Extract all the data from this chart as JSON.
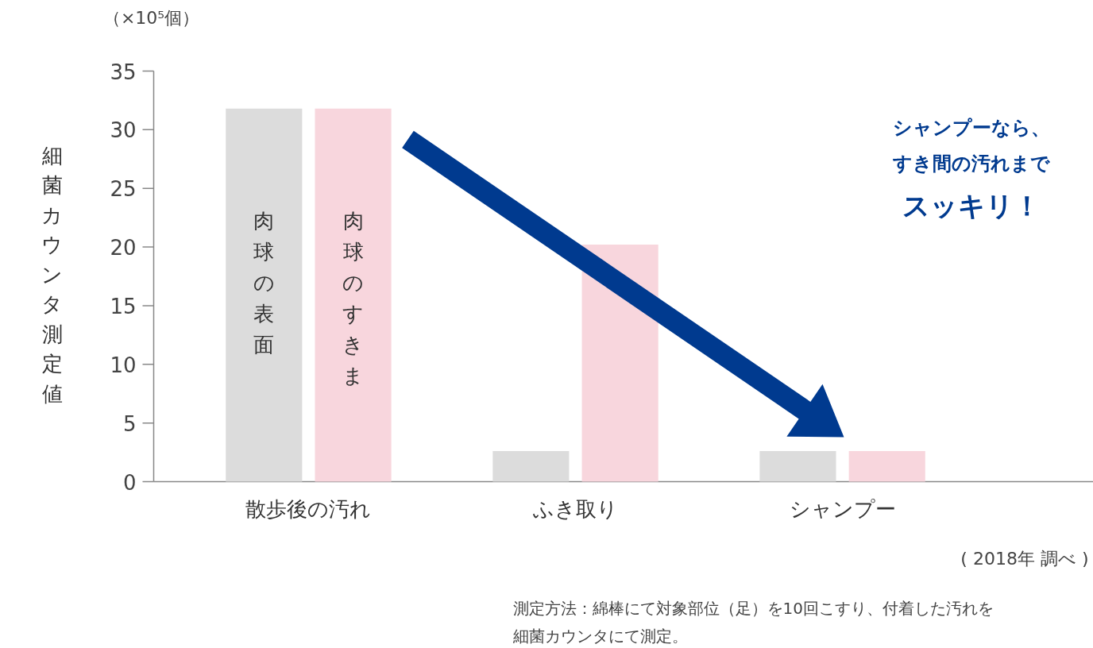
{
  "chart_data": {
    "type": "bar",
    "ylabel": "細菌カウンタ測定値",
    "categories": [
      "散歩後の汚れ",
      "ふき取り",
      "シャンプー"
    ],
    "series": [
      {
        "name": "肉球の表面",
        "color": "#dcdcdc",
        "values": [
          31.8,
          2.6,
          2.6
        ]
      },
      {
        "name": "肉球のすきま",
        "color": "#f8d6dd",
        "values": [
          31.8,
          20.2,
          2.6
        ]
      }
    ],
    "ylim": [
      0,
      35
    ],
    "yticks": [
      0,
      5,
      10,
      15,
      20,
      25,
      30,
      35
    ],
    "grid": false,
    "legend": false,
    "annotations": [
      "（×10⁵個）",
      "シャンプーなら、",
      "すき間の汚れまで",
      "スッキリ！",
      "( 2018年 調べ )",
      "測定方法：綿棒にて対象部位（足）を10回こすり、付着した汚れを",
      "細菌カウンタにて測定。"
    ]
  }
}
